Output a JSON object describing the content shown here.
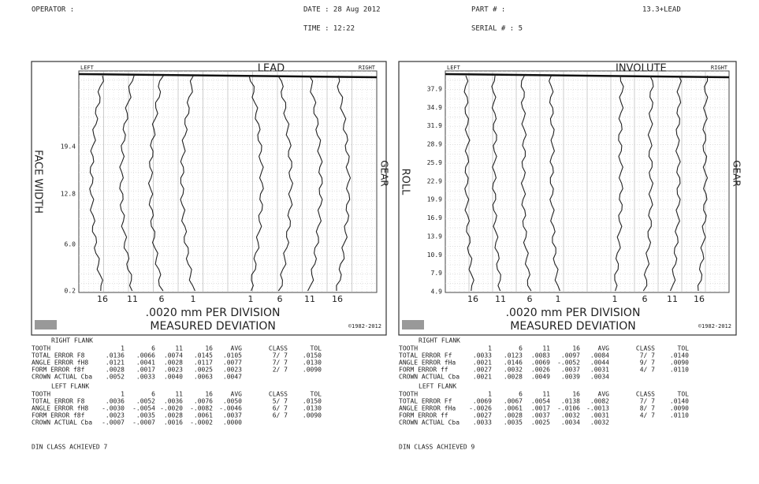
{
  "header": {
    "operator": "OPERATOR :",
    "date": "DATE : 28 Aug 2012",
    "time": "TIME : 12:22",
    "part": "PART # :",
    "part_value": "13.3+LEAD",
    "serial": "SERIAL # : 5"
  },
  "panels": [
    {
      "chart": {
        "title": "LEAD",
        "left": "LEFT",
        "right": "RIGHT",
        "ylabel": "FACE WIDTH",
        "gear": "GEAR",
        "yticks": [
          "19.4",
          "12.8",
          "6.0",
          "0.2"
        ],
        "xticks": [
          "16",
          "11",
          "6",
          "1",
          "1",
          "6",
          "11",
          "16"
        ],
        "scale": ".0020 mm PER DIVISION",
        "measured": "MEASURED DEVIATION",
        "copyright": "©1982-2012"
      },
      "tables": [
        {
          "title": "RIGHT FLANK",
          "header": [
            "TOOTH",
            "1",
            "6",
            "11",
            "16",
            "AVG",
            "CLASS",
            "TOL"
          ],
          "rows": [
            [
              "TOTAL ERROR F8",
              ".0136",
              ".0066",
              ".0074",
              ".0145",
              ".0105",
              "7/ 7",
              ".0150"
            ],
            [
              "ANGLE ERROR fH8",
              ".0121",
              ".0041",
              ".0028",
              ".0117",
              ".0077",
              "7/ 7",
              ".0130"
            ],
            [
              "FORM ERROR f8f",
              ".0028",
              ".0017",
              ".0023",
              ".0025",
              ".0023",
              "2/ 7",
              ".0090"
            ],
            [
              "CROWN ACTUAL Cba",
              ".0052",
              ".0033",
              ".0040",
              ".0063",
              ".0047"
            ]
          ]
        },
        {
          "title": "LEFT FLANK",
          "header": [
            "TOOTH",
            "1",
            "6",
            "11",
            "16",
            "AVG",
            "CLASS",
            "TOL"
          ],
          "rows": [
            [
              "TOTAL ERROR F8",
              ".0036",
              ".0052",
              ".0036",
              ".0076",
              ".0050",
              "5/ 7",
              ".0150"
            ],
            [
              "ANGLE ERROR fH8",
              "-.0030",
              "-.0054",
              "-.0020",
              "-.0082",
              "-.0046",
              "6/ 7",
              ".0130"
            ],
            [
              "FORM ERROR f8f",
              ".0023",
              ".0035",
              ".0028",
              ".0061",
              ".0037",
              "6/ 7",
              ".0090"
            ],
            [
              "CROWN ACTUAL Cba",
              "-.0007",
              "-.0007",
              ".0016",
              "-.0002",
              ".0000"
            ]
          ]
        }
      ],
      "din": "DIN CLASS ACHIEVED 7"
    },
    {
      "chart": {
        "title": "INVOLUTE",
        "left": "LEFT",
        "right": "RIGHT",
        "ylabel": "ROLL",
        "gear": "GEAR",
        "yticks": [
          "37.9",
          "34.9",
          "31.9",
          "28.9",
          "25.9",
          "22.9",
          "19.9",
          "16.9",
          "13.9",
          "10.9",
          "7.9",
          "4.9"
        ],
        "xticks": [
          "16",
          "11",
          "6",
          "1",
          "1",
          "6",
          "11",
          "16"
        ],
        "scale": ".0020 mm PER DIVISION",
        "measured": "MEASURED DEVIATION",
        "copyright": "©1982-2012"
      },
      "tables": [
        {
          "title": "RIGHT FLANK",
          "header": [
            "TOOTH",
            "1",
            "6",
            "11",
            "16",
            "AVG",
            "CLASS",
            "TOL"
          ],
          "rows": [
            [
              "TOTAL ERROR Ff",
              ".0033",
              ".0123",
              ".0083",
              ".0097",
              ".0084",
              "7/ 7",
              ".0140"
            ],
            [
              "ANGLE ERROR fHa",
              ".0021",
              ".0146",
              ".0069",
              "-.0052",
              ".0044",
              "9/ 7",
              ".0090"
            ],
            [
              "FORM ERROR ff",
              ".0027",
              ".0032",
              ".0026",
              ".0037",
              ".0031",
              "4/ 7",
              ".0110"
            ],
            [
              "CROWN ACTUAL Cba",
              ".0021",
              ".0028",
              ".0049",
              ".0039",
              ".0034"
            ]
          ]
        },
        {
          "title": "LEFT FLANK",
          "header": [
            "TOOTH",
            "1",
            "6",
            "11",
            "16",
            "AVG",
            "CLASS",
            "TOL"
          ],
          "rows": [
            [
              "TOTAL ERROR Ff",
              ".0069",
              ".0067",
              ".0054",
              ".0138",
              ".0082",
              "7/ 7",
              ".0140"
            ],
            [
              "ANGLE ERROR fHa",
              "-.0026",
              ".0061",
              ".0017",
              "-.0106",
              "-.0013",
              "8/ 7",
              ".0090"
            ],
            [
              "FORM ERROR ff",
              ".0027",
              ".0028",
              ".0037",
              ".0032",
              ".0031",
              "4/ 7",
              ".0110"
            ],
            [
              "CROWN ACTUAL Cba",
              ".0033",
              ".0035",
              ".0025",
              ".0034",
              ".0032"
            ]
          ]
        }
      ],
      "din": "DIN CLASS ACHIEVED 9"
    }
  ]
}
